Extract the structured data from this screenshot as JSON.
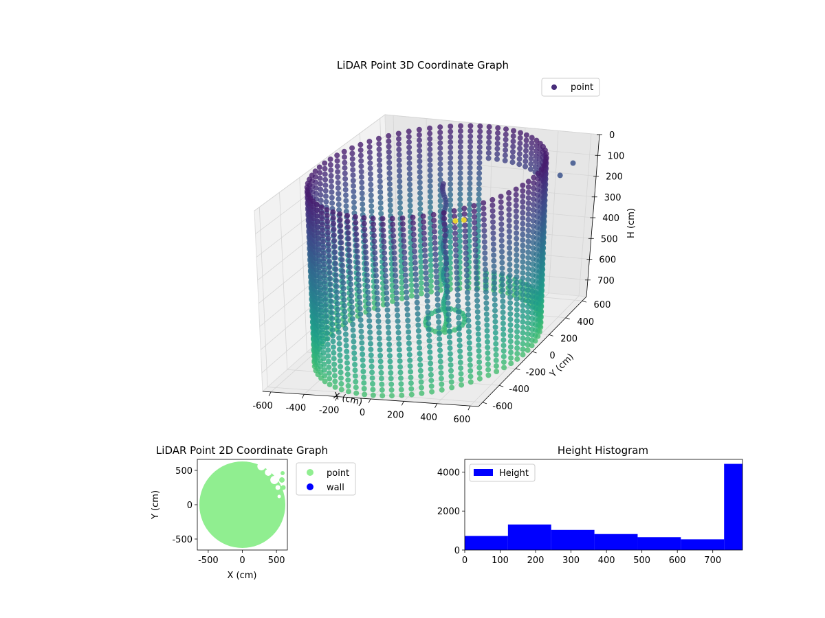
{
  "chart_data": [
    {
      "type": "scatter",
      "projection": "3d",
      "title": "LiDAR Point 3D Coordinate Graph",
      "xlabel": "X (cm)",
      "ylabel": "Y (cm)",
      "zlabel": "H (cm)",
      "xticks": [
        -600,
        -400,
        -200,
        0,
        200,
        400,
        600
      ],
      "yticks": [
        -600,
        -400,
        -200,
        0,
        200,
        400,
        600
      ],
      "zticks": [
        0,
        100,
        200,
        300,
        400,
        500,
        600,
        700
      ],
      "xlim": [
        -650,
        650
      ],
      "ylim": [
        -650,
        650
      ],
      "zlim": [
        0,
        780
      ],
      "z_inverted": true,
      "colormap": "viridis",
      "legend": {
        "placement": "top-right",
        "entries": [
          {
            "name": "point",
            "color": "#472c7a"
          }
        ]
      },
      "series": [
        {
          "name": "point",
          "description_shape": "cylindrical wall of radius ~620 cm sampled every ~5 degrees, heights 0-780 cm, open sector on the far side; vertical pole near the center; stray points near the low-Y edge",
          "wall": {
            "radius": 620,
            "angle_step_deg": 5,
            "h_step": 25,
            "h_range": [
              0,
              780
            ],
            "gap_deg": [
              35,
              95
            ]
          },
          "pole": {
            "x": 20,
            "y": 140,
            "h_range": [
              100,
              780
            ]
          },
          "strays": [
            {
              "x": 520,
              "y": -560,
              "h": 0,
              "color": "#fde725"
            },
            {
              "x": 560,
              "y": -540,
              "h": 0,
              "color": "#fde725"
            },
            {
              "x": 560,
              "y": 420,
              "h": 120,
              "color": "#3b528b"
            },
            {
              "x": 600,
              "y": 480,
              "h": 80,
              "color": "#3b528b"
            }
          ]
        }
      ]
    },
    {
      "type": "scatter",
      "title": "LiDAR Point 2D Coordinate Graph",
      "xlabel": "X (cm)",
      "ylabel": "Y (cm)",
      "xticks": [
        -500,
        0,
        500
      ],
      "yticks": [
        -500,
        0,
        500
      ],
      "xlim": [
        -660,
        660
      ],
      "ylim": [
        -660,
        660
      ],
      "legend": {
        "placement": "outside-right",
        "entries": [
          {
            "name": "point",
            "color": "#90ee90"
          },
          {
            "name": "wall",
            "color": "#0000ff"
          }
        ]
      },
      "series": [
        {
          "name": "point",
          "color": "#90ee90",
          "shape": "filled disk of radius ~630 cm with notches on the upper-right edge"
        },
        {
          "name": "wall",
          "color": "#0000ff",
          "values": []
        }
      ]
    },
    {
      "type": "bar",
      "title": "Height Histogram",
      "xticks": [
        0,
        100,
        200,
        300,
        400,
        500,
        600,
        700
      ],
      "yticks": [
        0,
        2000,
        4000
      ],
      "xlim": [
        0,
        784
      ],
      "ylim": [
        0,
        4650
      ],
      "legend": {
        "placement": "top-left",
        "entries": [
          {
            "name": "Height",
            "color": "#0000ff"
          }
        ]
      },
      "series": [
        {
          "name": "Height",
          "color": "#0000ff",
          "bins": [
            0,
            122,
            244,
            366,
            488,
            610,
            732,
            784
          ],
          "values": [
            720,
            1310,
            1030,
            820,
            660,
            550,
            4420
          ]
        }
      ]
    }
  ]
}
